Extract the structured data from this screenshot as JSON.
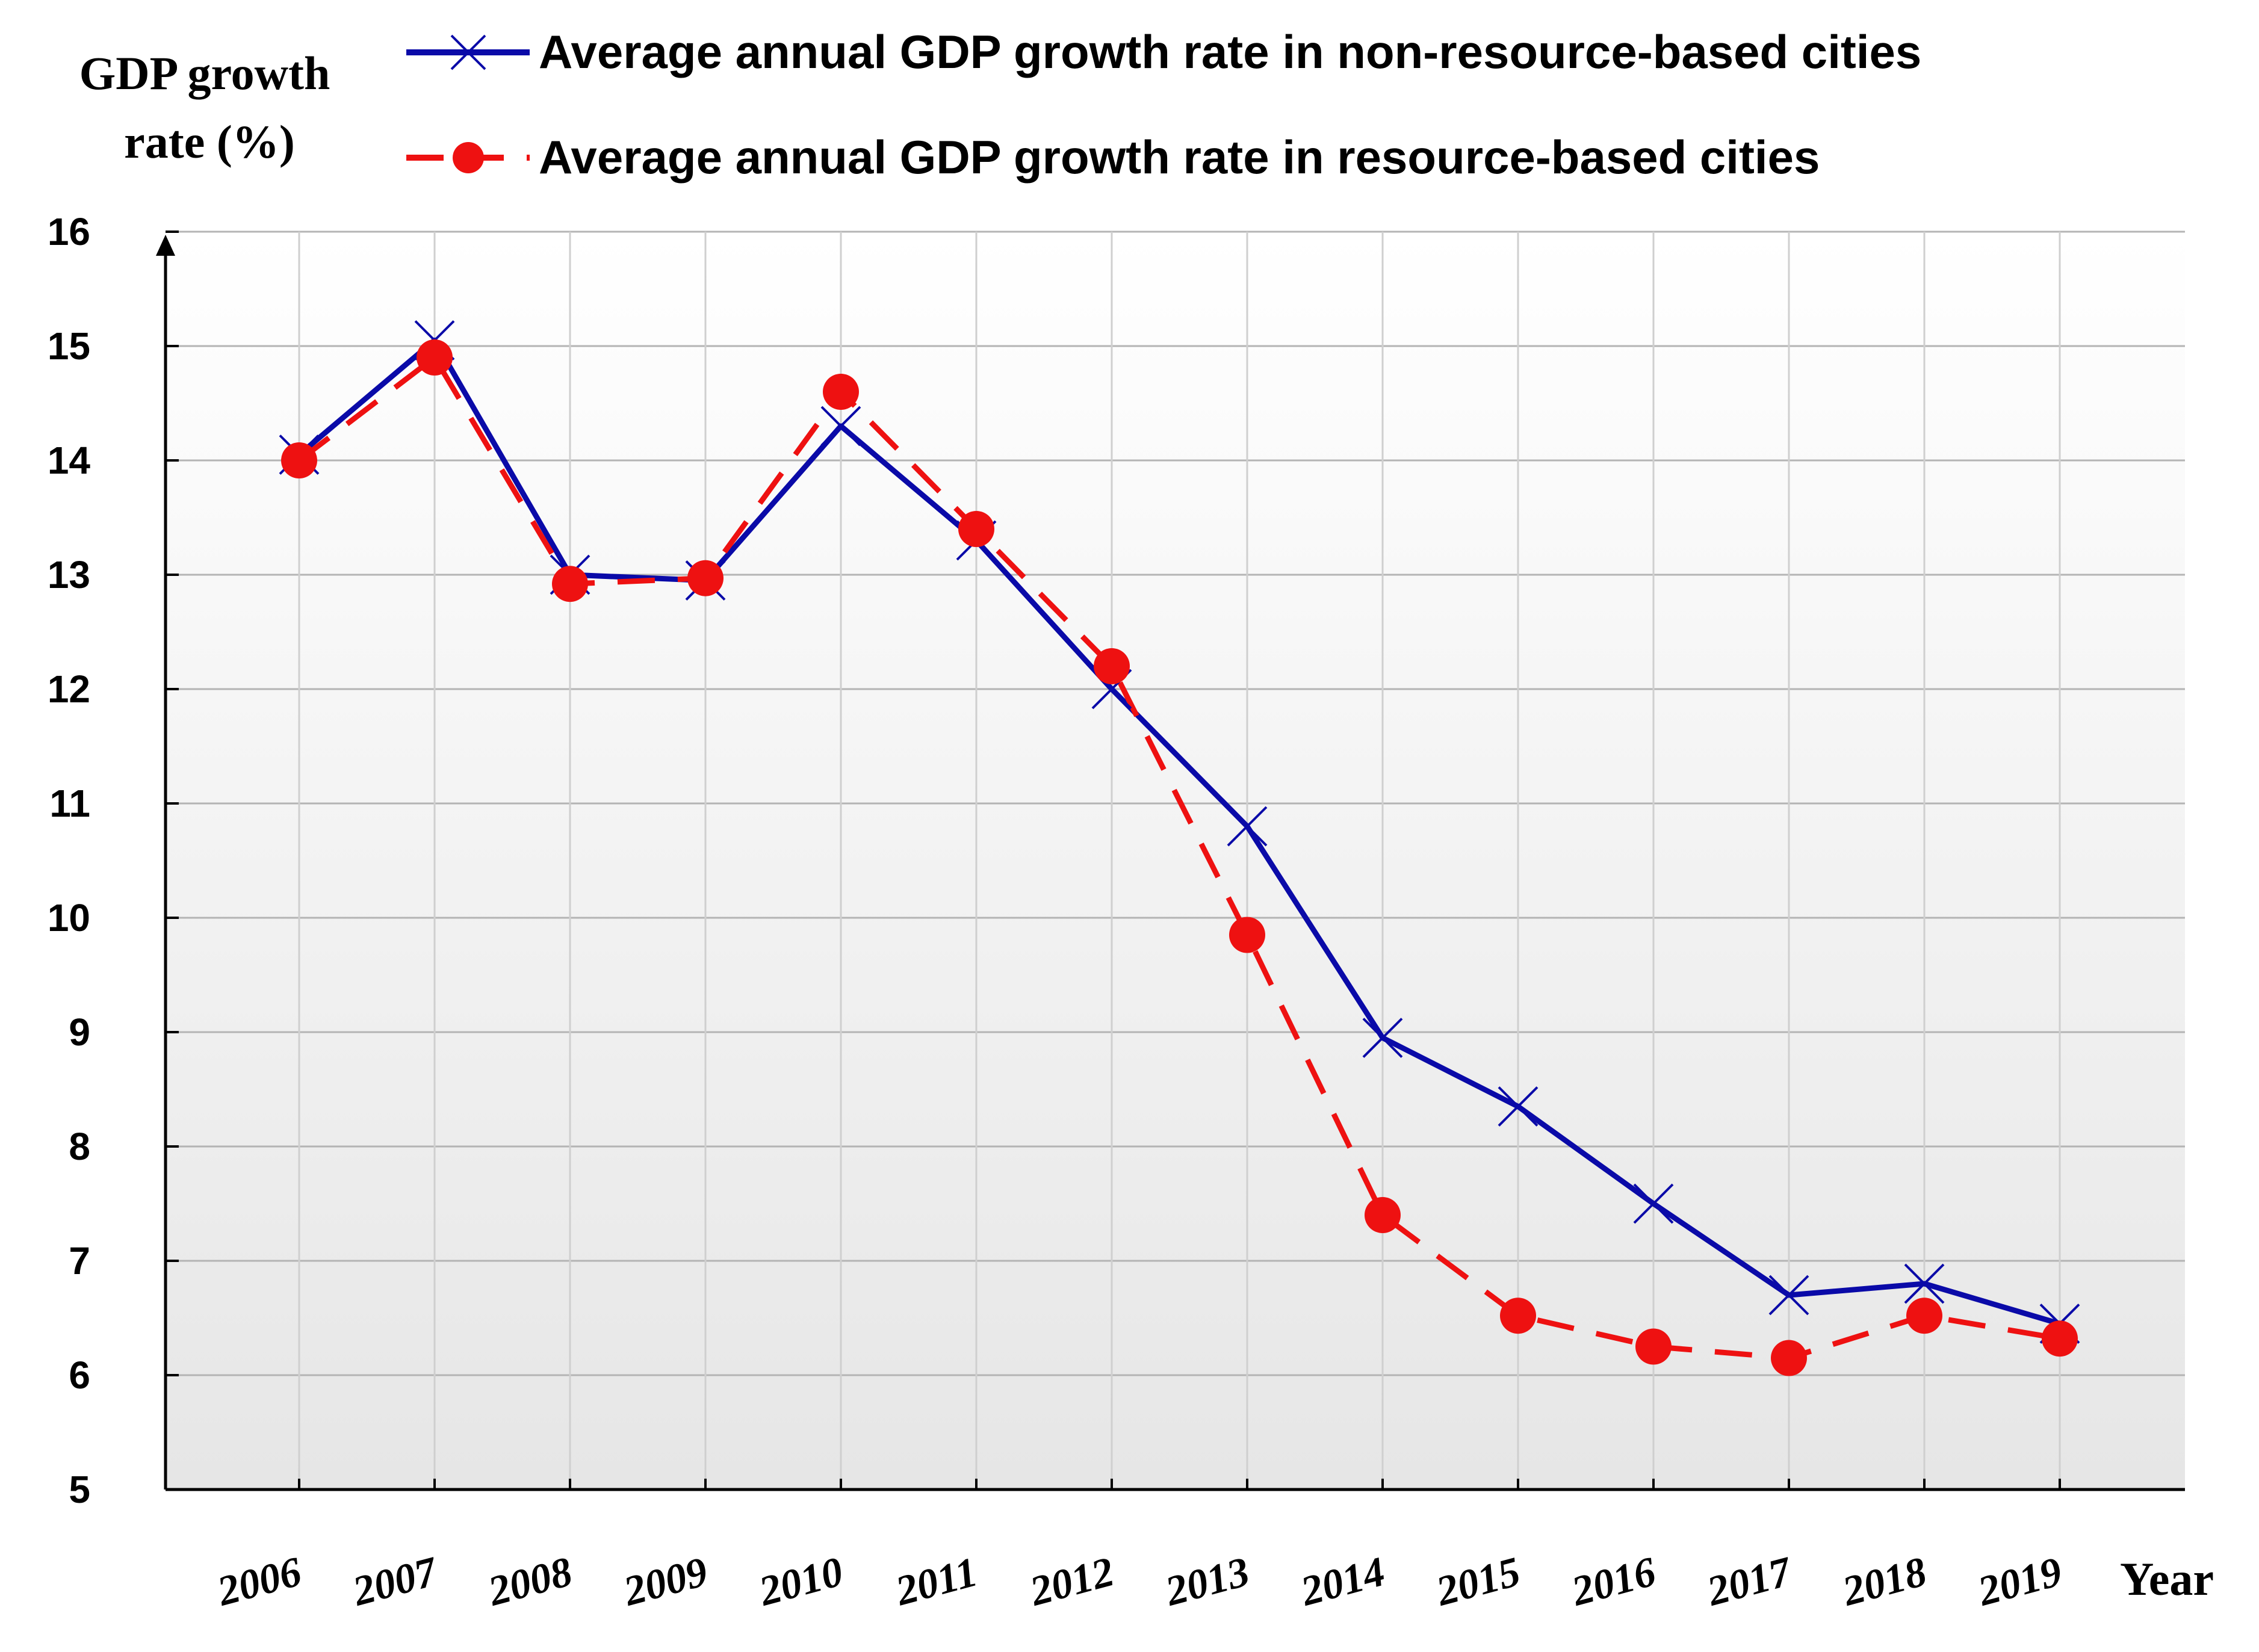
{
  "chart_data": {
    "type": "line",
    "title": "",
    "ylabel_line1": "GDP growth",
    "ylabel_line2": "rate (%)",
    "xlabel": "Year",
    "ylim": [
      5,
      16
    ],
    "yticks": [
      5,
      6,
      7,
      8,
      9,
      10,
      11,
      12,
      13,
      14,
      15,
      16
    ],
    "categories": [
      "2006",
      "2007",
      "2008",
      "2009",
      "2010",
      "2011",
      "2012",
      "2013",
      "2014",
      "2015",
      "2016",
      "2017",
      "2018",
      "2019"
    ],
    "grid": true,
    "legend_position": "top",
    "series": [
      {
        "name": "Average annual GDP growth rate in non-resource-based cities",
        "color": "#0a0aa8",
        "line_style": "solid",
        "marker": "x",
        "values": [
          14.05,
          15.05,
          13.0,
          12.95,
          14.3,
          13.3,
          12.0,
          10.8,
          8.95,
          8.35,
          7.5,
          6.7,
          6.8,
          6.45
        ]
      },
      {
        "name": "Average annual GDP growth rate in resource-based cities",
        "color": "#ee1111",
        "line_style": "dashed",
        "marker": "circle",
        "values": [
          14.0,
          14.9,
          12.92,
          12.97,
          14.6,
          13.4,
          12.2,
          9.85,
          7.4,
          6.52,
          6.25,
          6.15,
          6.52,
          6.32
        ]
      }
    ]
  }
}
